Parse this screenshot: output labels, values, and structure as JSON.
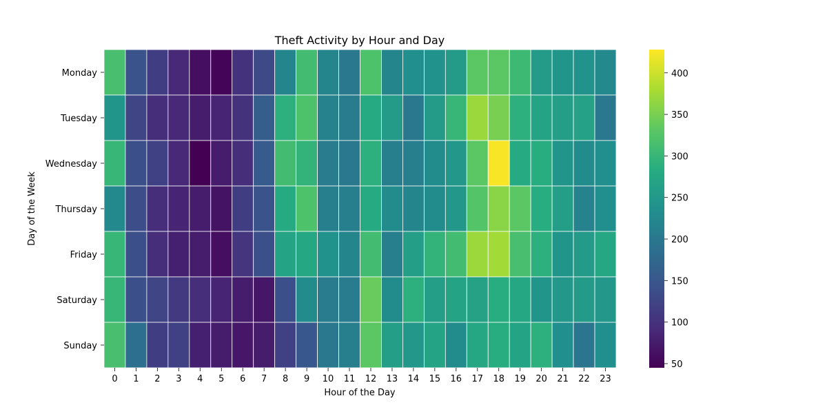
{
  "chart_data": {
    "type": "heatmap",
    "title": "Theft Activity by Hour and Day",
    "xlabel": "Hour of the Day",
    "ylabel": "Day of the Week",
    "x": [
      "0",
      "1",
      "2",
      "3",
      "4",
      "5",
      "6",
      "7",
      "8",
      "9",
      "10",
      "11",
      "12",
      "13",
      "14",
      "15",
      "16",
      "17",
      "18",
      "19",
      "20",
      "21",
      "22",
      "23"
    ],
    "y": [
      "Monday",
      "Tuesday",
      "Wednesday",
      "Thursday",
      "Friday",
      "Saturday",
      "Sunday"
    ],
    "values": [
      [
        315,
        145,
        115,
        90,
        60,
        50,
        100,
        130,
        220,
        310,
        220,
        200,
        320,
        220,
        235,
        240,
        255,
        330,
        330,
        305,
        255,
        245,
        240,
        225
      ],
      [
        245,
        125,
        95,
        90,
        75,
        85,
        100,
        160,
        290,
        320,
        215,
        205,
        280,
        255,
        200,
        255,
        300,
        370,
        350,
        290,
        270,
        260,
        265,
        200
      ],
      [
        300,
        140,
        120,
        90,
        45,
        75,
        95,
        155,
        310,
        295,
        205,
        200,
        290,
        210,
        210,
        230,
        250,
        330,
        425,
        280,
        285,
        245,
        230,
        235
      ],
      [
        225,
        135,
        95,
        85,
        75,
        65,
        115,
        145,
        280,
        320,
        210,
        210,
        280,
        230,
        220,
        230,
        250,
        325,
        360,
        330,
        285,
        260,
        215,
        235
      ],
      [
        300,
        140,
        95,
        80,
        75,
        60,
        105,
        140,
        270,
        275,
        240,
        220,
        310,
        210,
        260,
        295,
        310,
        370,
        375,
        315,
        290,
        245,
        255,
        275
      ],
      [
        300,
        140,
        125,
        110,
        95,
        85,
        75,
        70,
        140,
        230,
        205,
        205,
        340,
        230,
        290,
        260,
        270,
        265,
        285,
        275,
        245,
        250,
        255,
        250
      ],
      [
        315,
        185,
        115,
        120,
        80,
        75,
        70,
        75,
        120,
        150,
        200,
        210,
        330,
        260,
        250,
        270,
        230,
        275,
        285,
        270,
        290,
        235,
        195,
        235
      ]
    ],
    "colorbar": {
      "cmap": "viridis",
      "vmin": 45,
      "vmax": 428,
      "ticks": [
        "50",
        "100",
        "150",
        "200",
        "250",
        "300",
        "350",
        "400"
      ]
    }
  }
}
